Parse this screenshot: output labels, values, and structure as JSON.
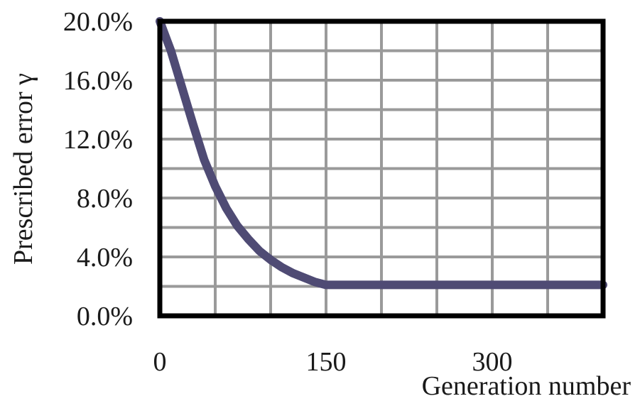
{
  "chart_data": {
    "type": "line",
    "title": "",
    "xlabel": "Generation number",
    "ylabel": "Prescribed error γ",
    "xlim": [
      0,
      400
    ],
    "ylim": [
      0,
      20
    ],
    "x_ticks": [
      0,
      150,
      300
    ],
    "x_tick_labels": [
      "0",
      "150",
      "300"
    ],
    "y_ticks": [
      0,
      4,
      8,
      12,
      16,
      20
    ],
    "y_tick_labels": [
      "0.0%",
      "4.0%",
      "8.0%",
      "12.0%",
      "16.0%",
      "20.0%"
    ],
    "grid": true,
    "grid_x_step": 50,
    "grid_y_step": 2,
    "series": [
      {
        "color": "#4f4b74",
        "x": [
          0,
          10,
          20,
          30,
          40,
          50,
          60,
          70,
          80,
          90,
          100,
          110,
          120,
          130,
          140,
          150,
          200,
          250,
          300,
          350,
          400
        ],
        "y": [
          20.0,
          18.0,
          15.5,
          13.0,
          10.6,
          8.8,
          7.3,
          6.1,
          5.2,
          4.4,
          3.8,
          3.3,
          2.9,
          2.6,
          2.3,
          2.1,
          2.1,
          2.1,
          2.1,
          2.1,
          2.1
        ]
      }
    ]
  }
}
